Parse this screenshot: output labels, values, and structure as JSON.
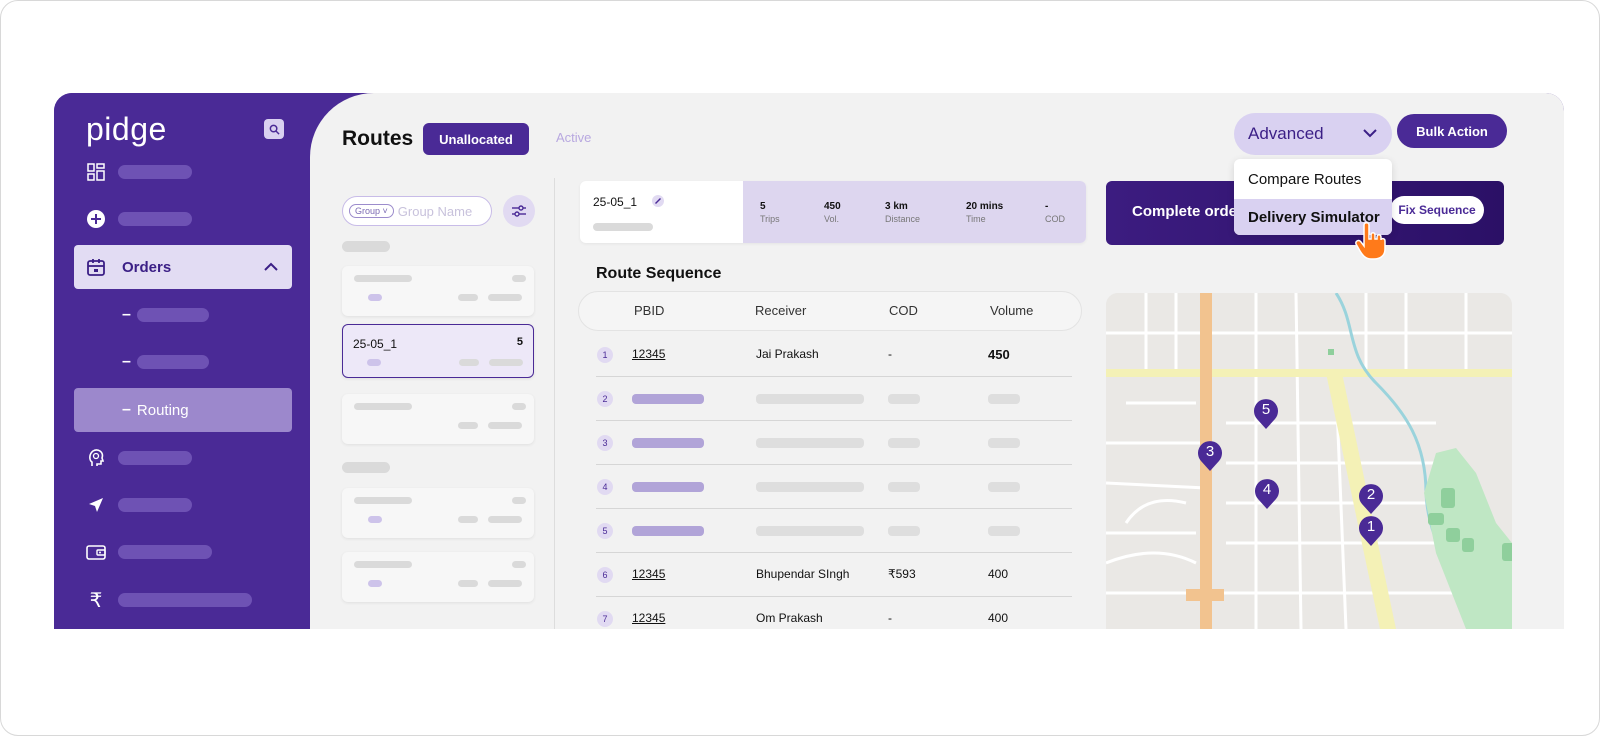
{
  "brand": {
    "logo_text": "pidge",
    "primary_color": "#4a2a96"
  },
  "sidebar": {
    "items": [
      {
        "icon": "grid-icon"
      },
      {
        "icon": "plus-circle-icon"
      },
      {
        "icon": "calendar-box-icon",
        "label": "Orders"
      },
      {
        "sub": true
      },
      {
        "sub": true
      },
      {
        "label": "Routing"
      },
      {
        "icon": "head-icon"
      },
      {
        "icon": "navigation-arrow-icon"
      },
      {
        "icon": "wallet-icon"
      },
      {
        "icon": "rupee-icon"
      }
    ]
  },
  "header": {
    "title": "Routes",
    "tab_unallocated": "Unallocated",
    "tab_active": "Active",
    "advanced_label": "Advanced",
    "bulk_action_label": "Bulk Action"
  },
  "dropdown": {
    "items": [
      "Compare Routes",
      "Delivery Simulator"
    ]
  },
  "filters": {
    "group_chip": "Group",
    "search_placeholder": "Group Name"
  },
  "cards": {
    "selected_title": "25-05_1",
    "selected_count": "5"
  },
  "route": {
    "id": "25-05_1",
    "stats": [
      {
        "value": "5",
        "label": "Trips"
      },
      {
        "value": "450",
        "label": "Vol."
      },
      {
        "value": "3 km",
        "label": "Distance"
      },
      {
        "value": "20 mins",
        "label": "Time"
      },
      {
        "value": "-",
        "label": "COD"
      }
    ]
  },
  "banner": {
    "text": "Complete orde",
    "fix_sequence": "Fix Sequence"
  },
  "sequence": {
    "title": "Route Sequence",
    "columns": [
      "PBID",
      "Receiver",
      "COD",
      "Volume"
    ],
    "rows": [
      {
        "n": "1",
        "pbid": "12345",
        "receiver": "Jai Prakash",
        "cod": "-",
        "volume": "450"
      },
      {
        "n": "2"
      },
      {
        "n": "3"
      },
      {
        "n": "4"
      },
      {
        "n": "5"
      },
      {
        "n": "6",
        "pbid": "12345",
        "receiver": "Bhupendar SIngh",
        "cod": "₹593",
        "volume": "400"
      },
      {
        "n": "7",
        "pbid": "12345",
        "receiver": "Om Prakash",
        "cod": "-",
        "volume": "400"
      }
    ]
  },
  "map": {
    "pins": [
      "5",
      "3",
      "4",
      "2",
      "1"
    ],
    "pin_color": "#4a2a96"
  }
}
